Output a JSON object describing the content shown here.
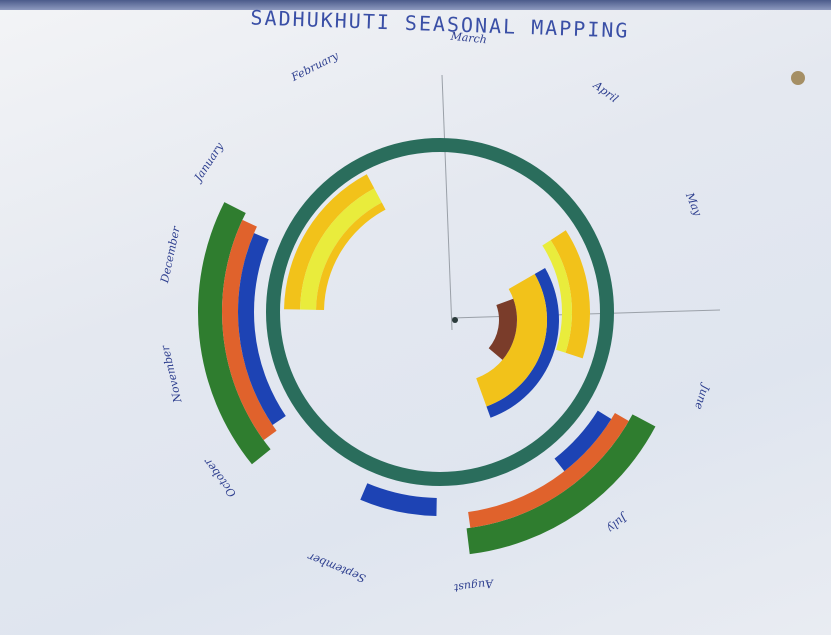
{
  "title": "SADHUKHUTI SEASONAL MAPPING",
  "months": [
    {
      "key": "january",
      "label": "January",
      "angle": 213
    },
    {
      "key": "february",
      "label": "February",
      "angle": 243
    },
    {
      "key": "march",
      "label": "March",
      "angle": 276
    },
    {
      "key": "april",
      "label": "April",
      "angle": 307
    },
    {
      "key": "may",
      "label": "May",
      "angle": 337
    },
    {
      "key": "june",
      "label": "June",
      "angle": 18
    },
    {
      "key": "july",
      "label": "July",
      "angle": 50
    },
    {
      "key": "august",
      "label": "August",
      "angle": 83
    },
    {
      "key": "september",
      "label": "September",
      "angle": 112
    },
    {
      "key": "october",
      "label": "October",
      "angle": 143
    },
    {
      "key": "november",
      "label": "November",
      "angle": 167
    },
    {
      "key": "december",
      "label": "December",
      "angle": 192
    }
  ],
  "colors": {
    "green": "#2f7d2f",
    "orange": "#e0622c",
    "blue": "#1d43b4",
    "yellow": "#f2c21a",
    "lightyellow": "#e9ec3c",
    "brown": "#7a3c2a",
    "ring": "#2a6d5c"
  }
}
